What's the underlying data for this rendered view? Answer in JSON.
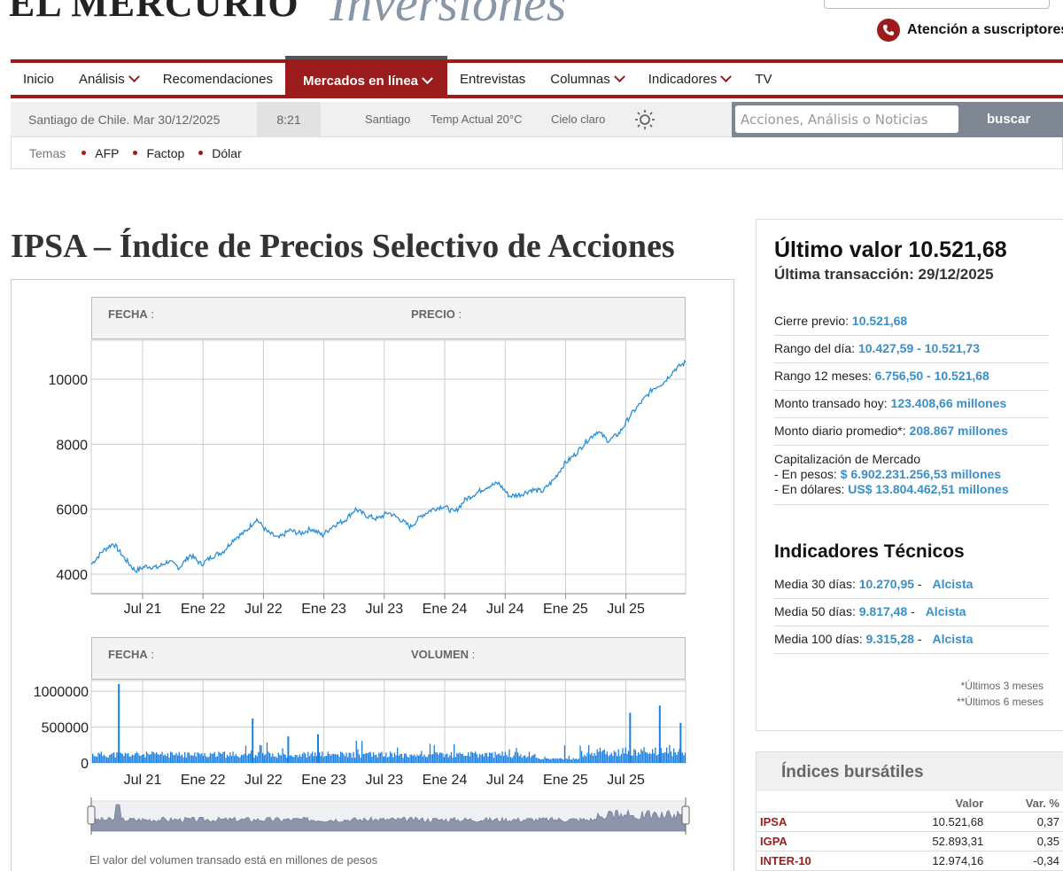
{
  "header": {
    "logo": "EL MERCURIO",
    "logo_sub": "Inversiones",
    "atencion": "Atención a suscriptores"
  },
  "nav": {
    "items": [
      {
        "label": "Inicio",
        "dropdown": false
      },
      {
        "label": "Análisis",
        "dropdown": true
      },
      {
        "label": "Recomendaciones",
        "dropdown": false
      },
      {
        "label": "Mercados en línea",
        "dropdown": true,
        "active": true
      },
      {
        "label": "Entrevistas",
        "dropdown": false
      },
      {
        "label": "Columnas",
        "dropdown": true
      },
      {
        "label": "Indicadores",
        "dropdown": true
      },
      {
        "label": "TV",
        "dropdown": false
      }
    ]
  },
  "infobar": {
    "date": "Santiago de Chile.  Mar 30/12/2025",
    "time": "8:21",
    "city": "Santiago",
    "temp": "Temp Actual 20°C",
    "sky": "Cielo claro",
    "search_placeholder": "Acciones, Análisis o Noticias",
    "search_button": "buscar"
  },
  "temas": {
    "label": "Temas",
    "tags": [
      "AFP",
      "Factop",
      "Dólar"
    ]
  },
  "page_title": "IPSA – Índice de Precios Selectivo de Acciones",
  "price_chart_header": {
    "fecha": "FECHA",
    "precio": "PRECIO"
  },
  "volume_chart_header": {
    "fecha": "FECHA",
    "volumen": "VOLUMEN"
  },
  "volume_note": "El valor del volumen transado está en millones de pesos",
  "chart_data": [
    {
      "type": "line",
      "title": "",
      "xlabel": "",
      "ylabel": "",
      "x_ticks": [
        "Jul 21",
        "Ene 22",
        "Jul 22",
        "Ene 23",
        "Jul 23",
        "Ene 24",
        "Jul 24",
        "Ene 25",
        "Jul 25"
      ],
      "y_ticks": [
        "4000",
        "6000",
        "8000",
        "10000"
      ],
      "ylim": [
        3400,
        11200
      ],
      "grid": true,
      "series": [
        {
          "values": [
            4300,
            4700,
            4950,
            4500,
            4100,
            4250,
            4200,
            4400,
            4200,
            4600,
            4300,
            4550,
            4700,
            5100,
            5300,
            5700,
            5300,
            5100,
            5350,
            5250,
            5400,
            5200,
            5500,
            5650,
            6000,
            5800,
            5700,
            5900,
            5700,
            5450,
            5800,
            6000,
            6100,
            5900,
            6300,
            6500,
            6700,
            6800,
            6400,
            6450,
            6600,
            6550,
            6900,
            7400,
            7700,
            8100,
            8400,
            8100,
            8350,
            8900,
            9300,
            9700,
            9900,
            10300,
            10522
          ]
        }
      ]
    },
    {
      "type": "bar",
      "title": "",
      "xlabel": "",
      "ylabel": "",
      "x_ticks": [
        "Jul 21",
        "Ene 22",
        "Jul 22",
        "Ene 23",
        "Jul 23",
        "Ene 24",
        "Jul 24",
        "Ene 25",
        "Jul 25"
      ],
      "y_ticks": [
        "0",
        "500000",
        "1000000"
      ],
      "ylim": [
        0,
        1150000
      ],
      "spikes": [
        {
          "x_fraction": 0.045,
          "value": 1100000
        },
        {
          "x_fraction": 0.27,
          "value": 620000
        },
        {
          "x_fraction": 0.33,
          "value": 370000
        },
        {
          "x_fraction": 0.38,
          "value": 400000
        },
        {
          "x_fraction": 0.905,
          "value": 700000
        },
        {
          "x_fraction": 0.955,
          "value": 800000
        },
        {
          "x_fraction": 0.99,
          "value": 560000
        }
      ]
    }
  ],
  "summary": {
    "last_value": "Último valor 10.521,68",
    "last_tx": "Última transacción: 29/12/2025",
    "rows": [
      {
        "label": "Cierre previo:",
        "value": "10.521,68"
      },
      {
        "label": "Rango del día:",
        "value": "10.427,59 - 10.521,73"
      },
      {
        "label": "Rango 12 meses:",
        "value": "6.756,50 - 10.521,68"
      },
      {
        "label": "Monto transado hoy:",
        "value": "123.408,66 millones"
      },
      {
        "label": "Monto diario promedio*:",
        "value": "208.867 millones"
      }
    ],
    "cap_label": "Capitalización de Mercado",
    "cap_pesos_label": "- En pesos:",
    "cap_pesos_value": "$ 6.902.231.256,53 millones",
    "cap_usd_label": "- En dólares:",
    "cap_usd_value": "US$ 13.804.462,51 millones"
  },
  "tech": {
    "title": "Indicadores Técnicos",
    "rows": [
      {
        "label": "Media 30 días:",
        "value": "10.270,95",
        "sep": " - ",
        "signal": "Alcista"
      },
      {
        "label": "Media 50 días:",
        "value": "9.817,48",
        "sep": " - ",
        "signal": "Alcista"
      },
      {
        "label": "Media 100 días:",
        "value": "9.315,28",
        "sep": " - ",
        "signal": "Alcista"
      }
    ],
    "foot1": "*Últimos 3 meses",
    "foot2": "**Últimos 6 meses"
  },
  "indices": {
    "title": "Índices bursátiles",
    "col_valor": "Valor",
    "col_var": "Var. %",
    "rows": [
      {
        "name": "IPSA",
        "valor": "10.521,68",
        "var": "0,37"
      },
      {
        "name": "IGPA",
        "valor": "52.893,31",
        "var": "0,35"
      },
      {
        "name": "INTER-10",
        "valor": "12.974,16",
        "var": "-0,34"
      }
    ]
  },
  "colors": {
    "brand": "#9b1c1c",
    "accent": "#3b8fc7",
    "line": "#2a8fd6",
    "bar": "#1a7fe0"
  }
}
